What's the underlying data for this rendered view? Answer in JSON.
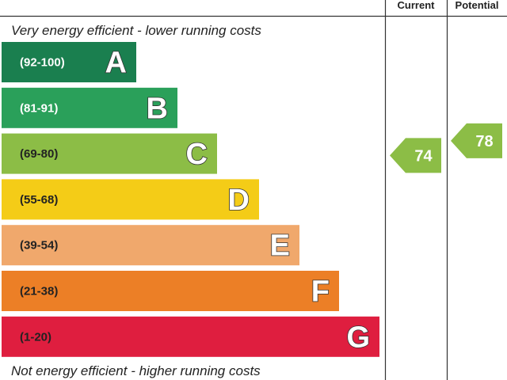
{
  "chart_data": {
    "type": "bar",
    "columns": {
      "current": "Current",
      "potential": "Potential"
    },
    "top_caption": "Very energy efficient - lower running costs",
    "bottom_caption": "Not energy efficient - higher running costs",
    "bands": [
      {
        "letter": "A",
        "range": "(92-100)",
        "min": 92,
        "max": 100,
        "color": "#1a7f4f",
        "range_color": "#ffffff"
      },
      {
        "letter": "B",
        "range": "(81-91)",
        "min": 81,
        "max": 91,
        "color": "#2aa05a",
        "range_color": "#ffffff"
      },
      {
        "letter": "C",
        "range": "(69-80)",
        "min": 69,
        "max": 80,
        "color": "#8cbd46",
        "range_color": "#222222"
      },
      {
        "letter": "D",
        "range": "(55-68)",
        "min": 55,
        "max": 68,
        "color": "#f4cc17",
        "range_color": "#222222"
      },
      {
        "letter": "E",
        "range": "(39-54)",
        "min": 39,
        "max": 54,
        "color": "#f0a86c",
        "range_color": "#222222"
      },
      {
        "letter": "F",
        "range": "(21-38)",
        "min": 21,
        "max": 38,
        "color": "#ec7f26",
        "range_color": "#222222"
      },
      {
        "letter": "G",
        "range": "(1-20)",
        "min": 1,
        "max": 20,
        "color": "#df1e3f",
        "range_color": "#222222"
      }
    ],
    "current": {
      "value": 74,
      "band": "C",
      "color": "#8cbd46"
    },
    "potential": {
      "value": 78,
      "band": "C",
      "color": "#8cbd46"
    }
  }
}
